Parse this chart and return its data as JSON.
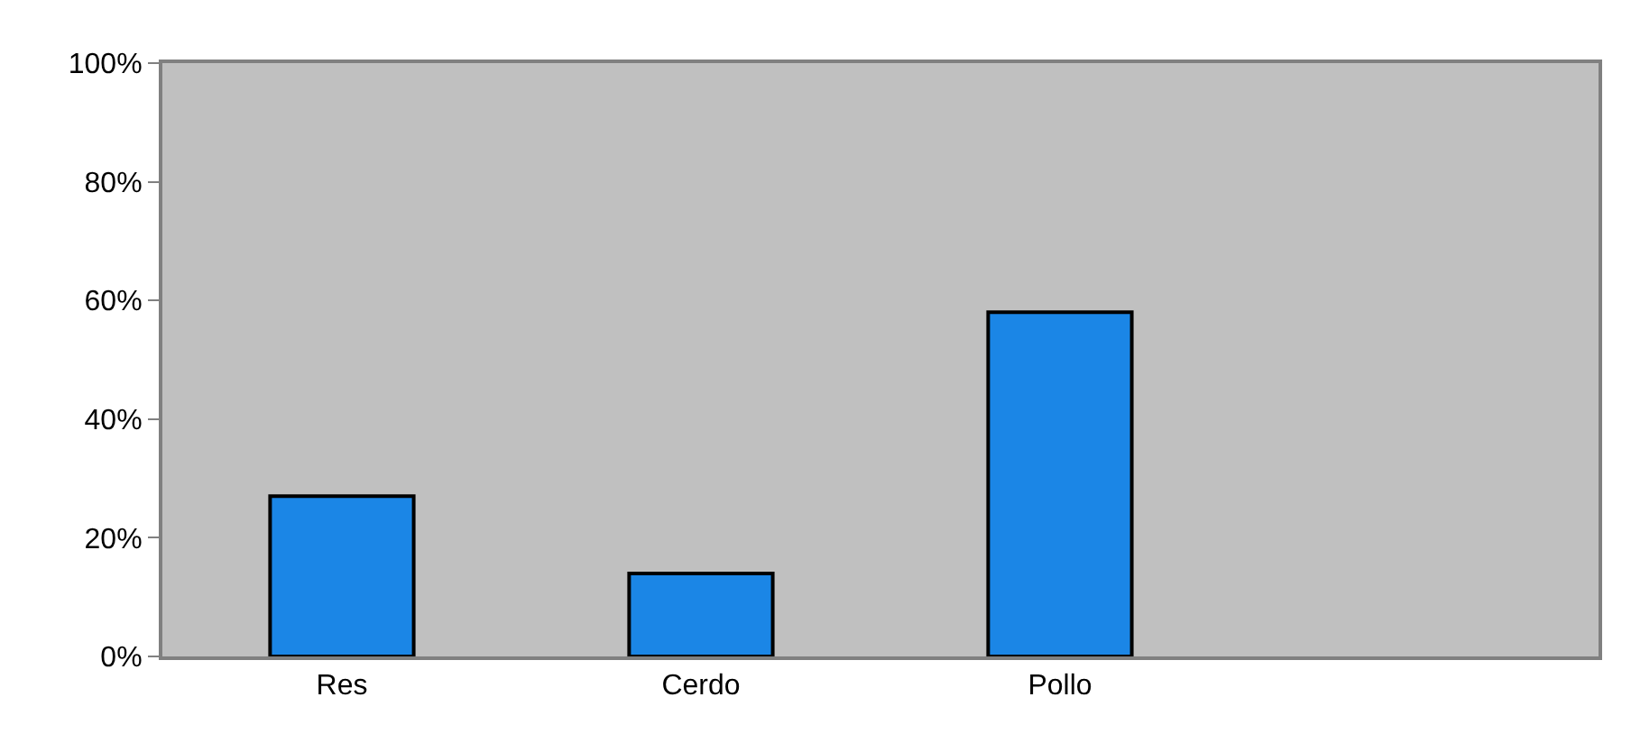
{
  "chart_data": {
    "type": "bar",
    "categories": [
      "Res",
      "Cerdo",
      "Pollo",
      null
    ],
    "values": [
      27,
      14,
      58,
      null
    ],
    "color": "#1b86e6",
    "ylim": [
      0,
      100
    ],
    "yticks": [
      {
        "value": 0,
        "label": "0%"
      },
      {
        "value": 20,
        "label": "20%"
      },
      {
        "value": 40,
        "label": "40%"
      },
      {
        "value": 60,
        "label": "60%"
      },
      {
        "value": 80,
        "label": "80%"
      },
      {
        "value": 100,
        "label": "100%"
      }
    ],
    "grid": false,
    "legend": false
  }
}
